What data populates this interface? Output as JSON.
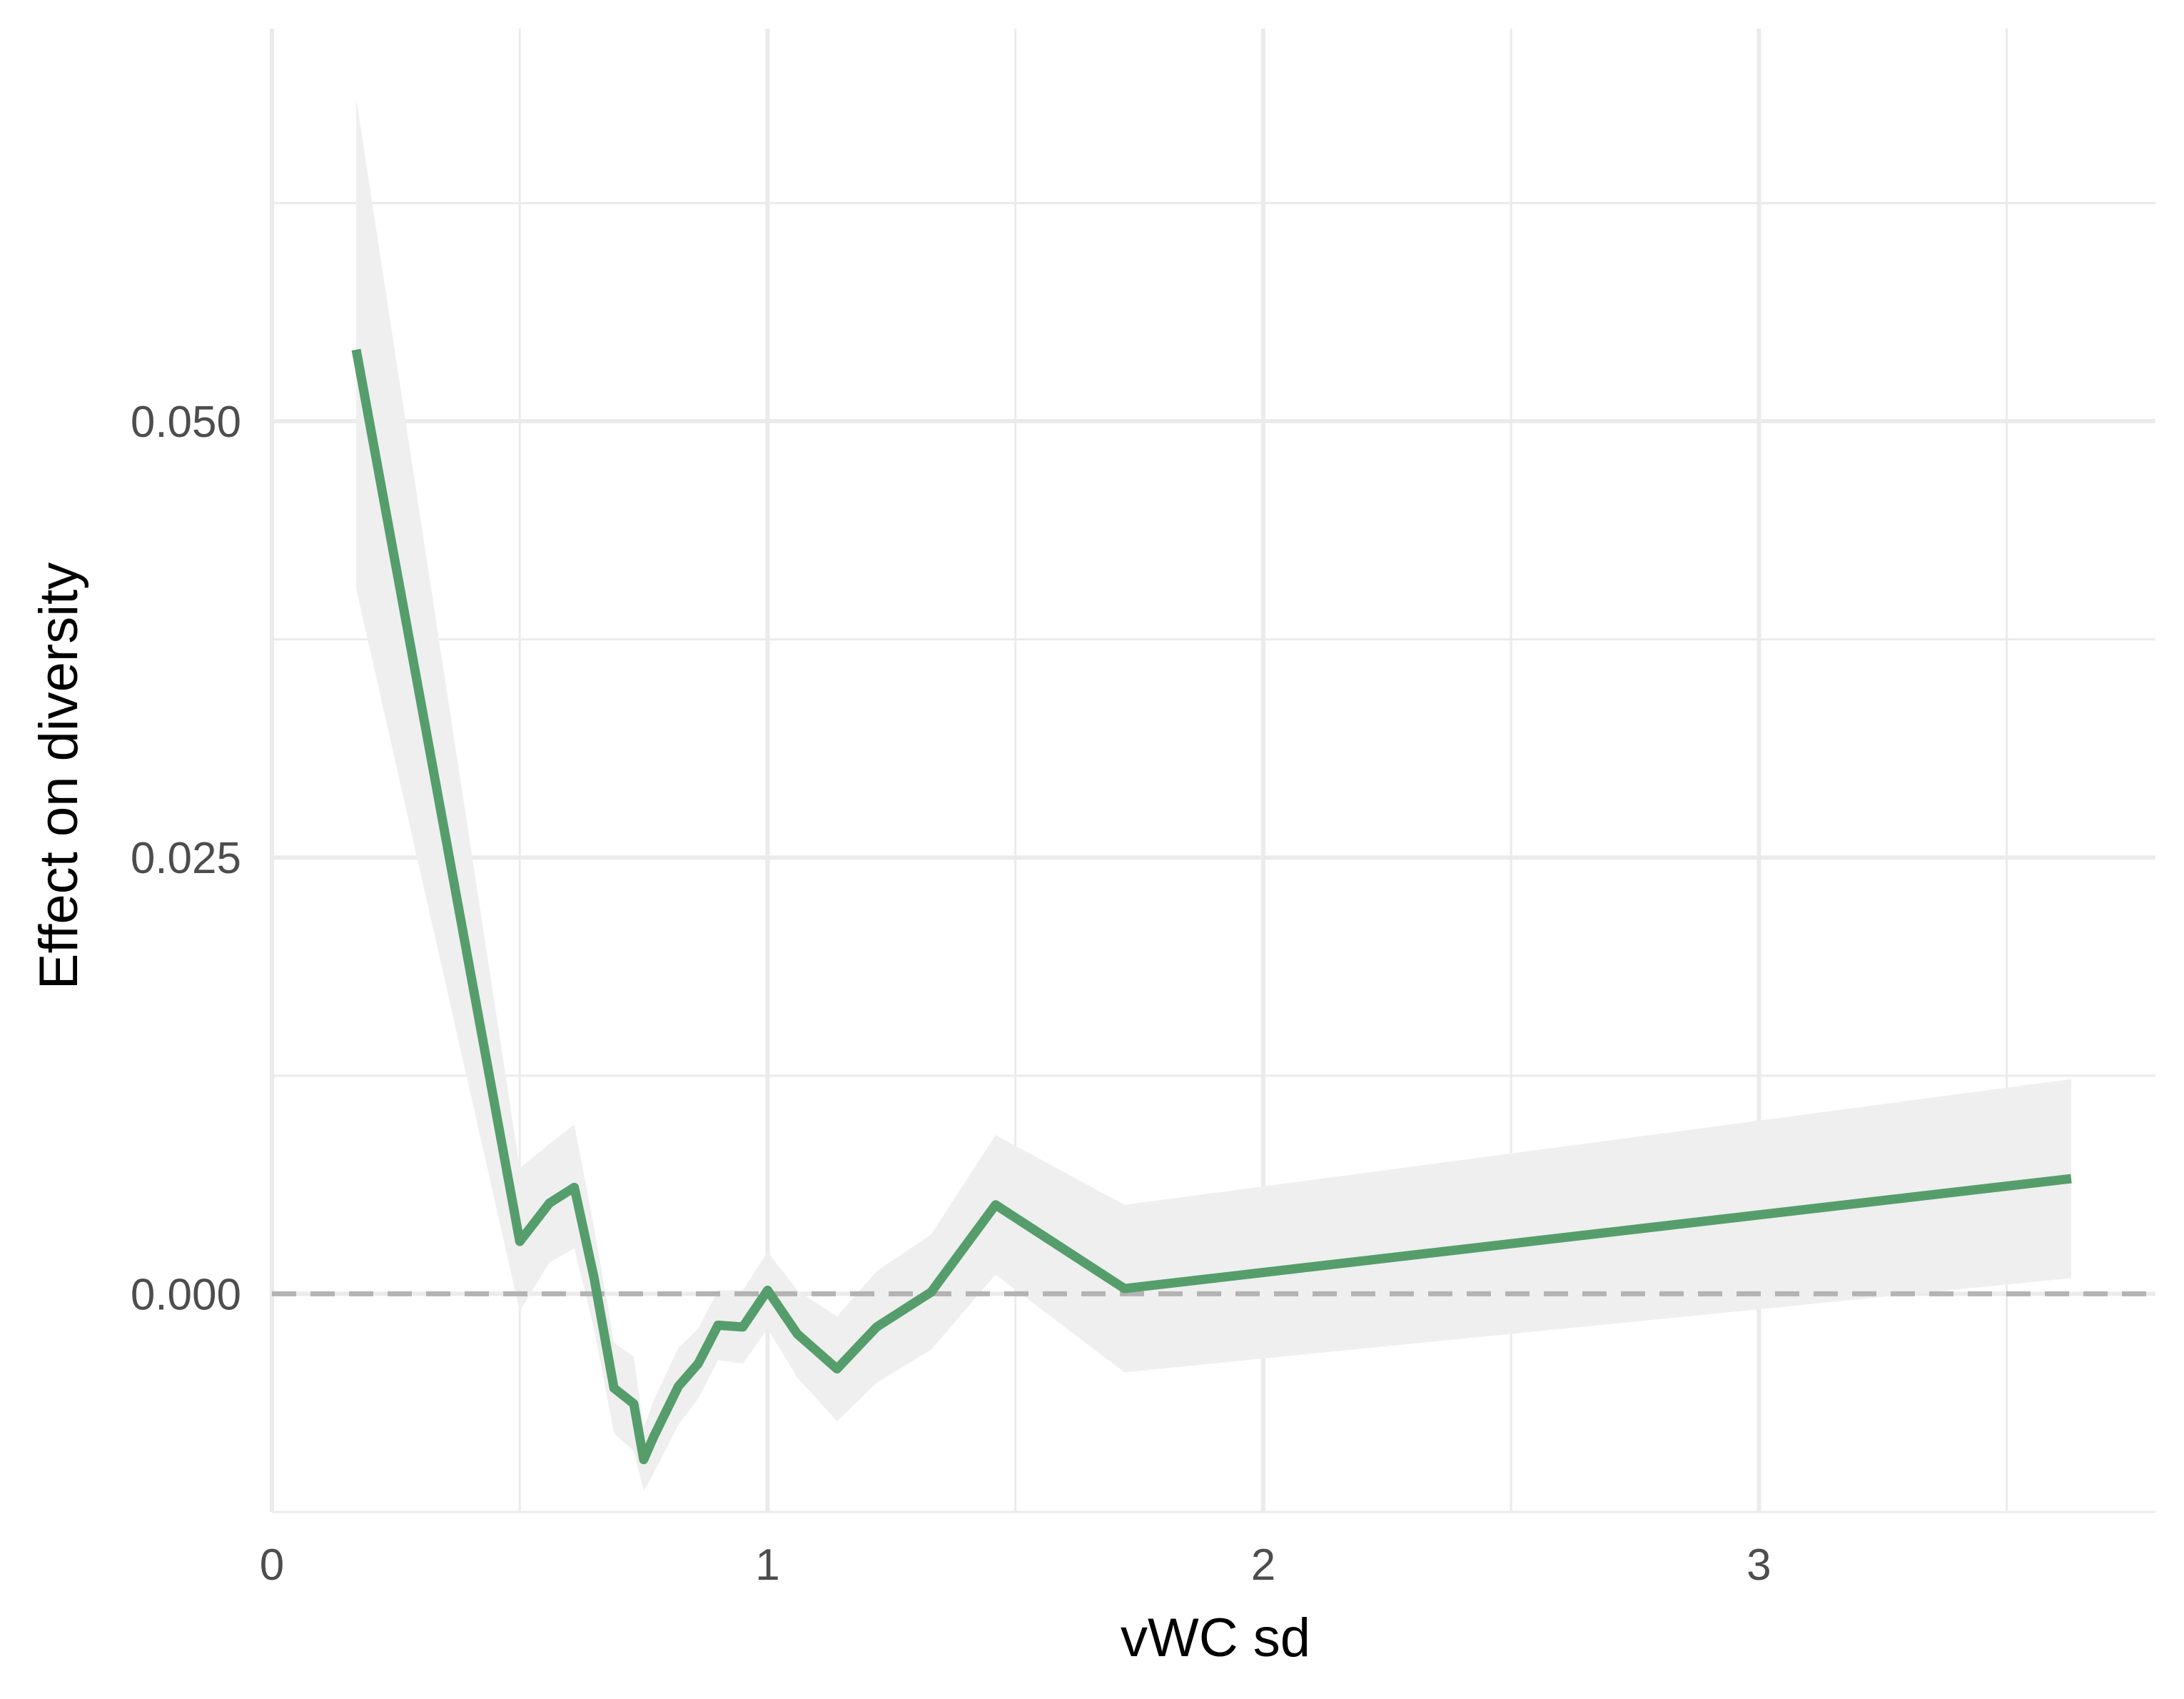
{
  "chart_data": {
    "type": "line",
    "title": "",
    "xlabel": "vWC sd",
    "ylabel": "Effect on diversity",
    "xlim": [
      0,
      3.8
    ],
    "ylim": [
      -0.0125,
      0.0725
    ],
    "x_ticks": [
      0,
      1,
      2,
      3
    ],
    "x_tick_labels": [
      "0",
      "1",
      "2",
      "3"
    ],
    "x_minor_ticks": [
      0.5,
      1.5,
      2.5,
      3.5
    ],
    "y_ticks": [
      0.0,
      0.025,
      0.05
    ],
    "y_tick_labels": [
      "0.000",
      "0.025",
      "0.050"
    ],
    "y_minor_ticks": [
      -0.0125,
      0.0125,
      0.0375,
      0.0625
    ],
    "grid": true,
    "reference_line": {
      "y": 0,
      "style": "dashed",
      "color": "#b3b3b3"
    },
    "series": [
      {
        "color": "#559e6b",
        "ribbon_color": "#efefef",
        "x": [
          0.17,
          0.5,
          0.56,
          0.61,
          0.65,
          0.69,
          0.73,
          0.75,
          0.77,
          0.82,
          0.86,
          0.9,
          0.95,
          1.0,
          1.06,
          1.14,
          1.22,
          1.33,
          1.46,
          1.72,
          3.63
        ],
        "y": [
          0.0541,
          0.003,
          0.0052,
          0.0061,
          0.0009,
          -0.0054,
          -0.0063,
          -0.0095,
          -0.0082,
          -0.0053,
          -0.004,
          -0.0018,
          -0.0019,
          0.0002,
          -0.0023,
          -0.0043,
          -0.0019,
          0.0001,
          0.0051,
          0.0003,
          0.0066
        ],
        "lower": [
          0.0404,
          -0.001,
          0.0018,
          0.0026,
          -0.002,
          -0.008,
          -0.009,
          -0.0113,
          -0.0103,
          -0.0075,
          -0.006,
          -0.0038,
          -0.004,
          -0.002,
          -0.0048,
          -0.0073,
          -0.0051,
          -0.0032,
          0.0011,
          -0.0045,
          0.0009
        ],
        "upper": [
          0.0685,
          0.0072,
          0.0086,
          0.0097,
          0.0038,
          -0.0028,
          -0.0036,
          -0.0077,
          -0.0061,
          -0.0031,
          -0.002,
          0.0002,
          0.0002,
          0.0024,
          0.0002,
          -0.0013,
          0.0013,
          0.0034,
          0.0091,
          0.0051,
          0.0123
        ]
      }
    ]
  }
}
